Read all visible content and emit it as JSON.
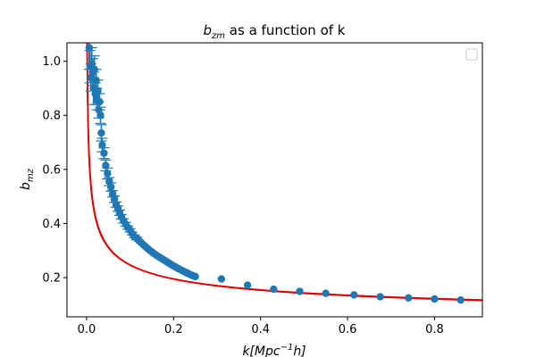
{
  "chart_data": {
    "type": "scatter",
    "title": {
      "base": "b",
      "sub": "zm",
      "rest": " as a function of k"
    },
    "xlabel": {
      "pre": "k[Mpc",
      "sup": "−1",
      "post": "h]"
    },
    "ylabel": {
      "base": "b",
      "sub": "mz"
    },
    "xlim": [
      -0.045,
      0.91
    ],
    "ylim": [
      0.055,
      1.068
    ],
    "xticks": [
      0.0,
      0.2,
      0.4,
      0.6,
      0.8
    ],
    "xtick_labels": [
      "0.0",
      "0.2",
      "0.4",
      "0.6",
      "0.8"
    ],
    "yticks": [
      0.2,
      0.4,
      0.6,
      0.8,
      1.0
    ],
    "ytick_labels": [
      "0.2",
      "0.4",
      "0.6",
      "0.8",
      "1.0"
    ],
    "grid": false,
    "legend": {
      "placement": "top-right",
      "entries": []
    },
    "series": [
      {
        "kind": "points_with_errorbars",
        "color": "#1f77b4",
        "points": [
          [
            0.006,
            1.05,
            0.08
          ],
          [
            0.008,
            0.98,
            0.06
          ],
          [
            0.01,
            0.94,
            0.05
          ],
          [
            0.012,
            0.99,
            0.06
          ],
          [
            0.014,
            0.96,
            0.05
          ],
          [
            0.016,
            0.9,
            0.06
          ],
          [
            0.018,
            0.97,
            0.05
          ],
          [
            0.02,
            0.88,
            0.04
          ],
          [
            0.022,
            0.93,
            0.04
          ],
          [
            0.024,
            0.86,
            0.04
          ],
          [
            0.026,
            0.89,
            0.04
          ],
          [
            0.028,
            0.82,
            0.03
          ],
          [
            0.03,
            0.85,
            0.03
          ],
          [
            0.032,
            0.8,
            0.03
          ],
          [
            0.034,
            0.735,
            0.03
          ],
          [
            0.036,
            0.69,
            0.025
          ],
          [
            0.04,
            0.66,
            0.02
          ],
          [
            0.044,
            0.615,
            0.02
          ],
          [
            0.048,
            0.585,
            0.02
          ],
          [
            0.052,
            0.555,
            0.015
          ],
          [
            0.056,
            0.535,
            0.015
          ],
          [
            0.06,
            0.51,
            0.012
          ],
          [
            0.064,
            0.49,
            0.012
          ],
          [
            0.068,
            0.47,
            0.01
          ],
          [
            0.072,
            0.455,
            0.01
          ],
          [
            0.076,
            0.44,
            0.01
          ],
          [
            0.08,
            0.425,
            0.008
          ],
          [
            0.085,
            0.41,
            0.008
          ],
          [
            0.09,
            0.397,
            0.007
          ],
          [
            0.095,
            0.385,
            0.006
          ],
          [
            0.1,
            0.375,
            0.006
          ],
          [
            0.105,
            0.363,
            0.005
          ],
          [
            0.11,
            0.352,
            0.005
          ],
          [
            0.115,
            0.345,
            0.005
          ],
          [
            0.12,
            0.337,
            0.004
          ],
          [
            0.125,
            0.33,
            0.004
          ],
          [
            0.13,
            0.322,
            0.004
          ],
          [
            0.135,
            0.315,
            0.004
          ],
          [
            0.14,
            0.308,
            0.003
          ],
          [
            0.145,
            0.301,
            0.003
          ],
          [
            0.15,
            0.295,
            0.003
          ],
          [
            0.155,
            0.289,
            0.003
          ],
          [
            0.16,
            0.283,
            0.003
          ],
          [
            0.165,
            0.278,
            0.003
          ],
          [
            0.17,
            0.273,
            0.003
          ],
          [
            0.175,
            0.268,
            0.003
          ],
          [
            0.18,
            0.263,
            0.002
          ],
          [
            0.185,
            0.258,
            0.002
          ],
          [
            0.19,
            0.253,
            0.002
          ],
          [
            0.195,
            0.248,
            0.002
          ],
          [
            0.2,
            0.243,
            0.002
          ],
          [
            0.205,
            0.239,
            0.002
          ],
          [
            0.21,
            0.234,
            0.002
          ],
          [
            0.215,
            0.23,
            0.002
          ],
          [
            0.22,
            0.226,
            0.002
          ],
          [
            0.225,
            0.222,
            0.002
          ],
          [
            0.23,
            0.218,
            0.002
          ],
          [
            0.235,
            0.214,
            0.002
          ],
          [
            0.24,
            0.21,
            0.002
          ],
          [
            0.245,
            0.207,
            0.002
          ],
          [
            0.25,
            0.204,
            0.002
          ],
          [
            0.31,
            0.195,
            0.002
          ],
          [
            0.37,
            0.172,
            0.002
          ],
          [
            0.43,
            0.157,
            0.002
          ],
          [
            0.49,
            0.149,
            0.002
          ],
          [
            0.55,
            0.142,
            0.002
          ],
          [
            0.615,
            0.136,
            0.002
          ],
          [
            0.675,
            0.129,
            0.002
          ],
          [
            0.74,
            0.125,
            0.002
          ],
          [
            0.8,
            0.121,
            0.002
          ],
          [
            0.86,
            0.117,
            0.002
          ]
        ]
      },
      {
        "kind": "curves",
        "color": "#e00000",
        "form": "y = a * x^p",
        "curves": [
          {
            "a": 0.1128,
            "p": -0.34
          },
          {
            "a": 0.1117,
            "p": -0.345
          },
          {
            "a": 0.1139,
            "p": -0.335
          }
        ]
      }
    ]
  }
}
